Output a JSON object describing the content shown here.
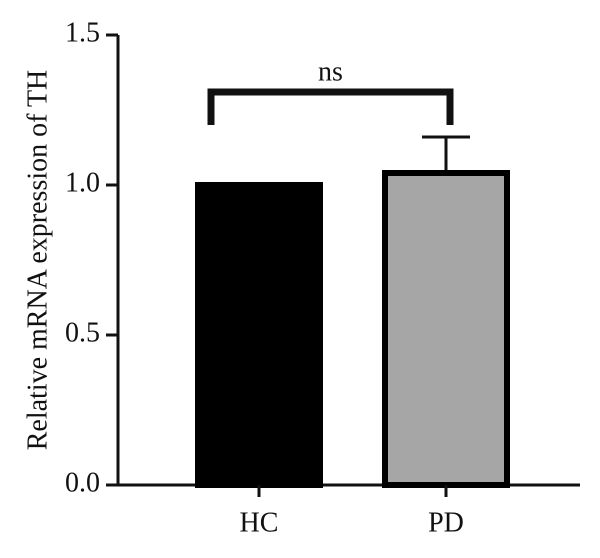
{
  "chart_data": {
    "type": "bar",
    "y_label": "Relative mRNA expression of TH",
    "categories": [
      "HC",
      "PD"
    ],
    "values": [
      1.0,
      1.04
    ],
    "errors": [
      0,
      0.12
    ],
    "colors": [
      "#000000",
      "#a6a6a6"
    ],
    "annotation": "ns",
    "ylim": [
      0,
      1.5
    ],
    "yticks": [
      {
        "value": 0,
        "label": "0.0"
      },
      {
        "value": 0.5,
        "label": "0.5"
      },
      {
        "value": 1.0,
        "label": "1.0"
      },
      {
        "value": 1.5,
        "label": "1.5"
      }
    ],
    "grid": false
  }
}
